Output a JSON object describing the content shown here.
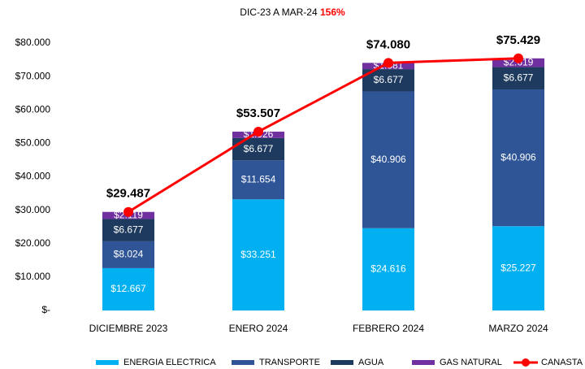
{
  "chart_data": {
    "type": "bar",
    "stacked": true,
    "title": "DIC-23 A MAR-24",
    "title_highlight": "156%",
    "title_highlight_color": "#ff0000",
    "categories": [
      "DICIEMBRE 2023",
      "ENERO 2024",
      "FEBRERO 2024",
      "MARZO 2024"
    ],
    "series": [
      {
        "name": "ENERGIA ELECTRICA",
        "color": "#00b0f0",
        "values": [
          12667,
          33251,
          24616,
          25227
        ],
        "value_labels": [
          "$12.667",
          "$33.251",
          "$24.616",
          "$25.227"
        ]
      },
      {
        "name": "TRANSPORTE",
        "color": "#2f5597",
        "values": [
          8024,
          11654,
          40906,
          40906
        ],
        "value_labels": [
          "$8.024",
          "$11.654",
          "$40.906",
          "$40.906"
        ]
      },
      {
        "name": "AGUA",
        "color": "#1f3a5f",
        "values": [
          6677,
          6677,
          6677,
          6677
        ],
        "value_labels": [
          "$6.677",
          "$6.677",
          "$6.677",
          "$6.677"
        ]
      },
      {
        "name": "GAS NATURAL",
        "color": "#7030a0",
        "values": [
          2119,
          1926,
          1881,
          2619
        ],
        "value_labels": [
          "$2.119",
          "$1.926",
          "$1.881",
          "$2.619"
        ]
      },
      {
        "name": "CANASTA",
        "type": "line",
        "color": "#ff0000",
        "values": [
          29487,
          53507,
          74080,
          75429
        ],
        "value_labels": [
          "$29.487",
          "$53.507",
          "$74.080",
          "$75.429"
        ]
      }
    ],
    "ylim": [
      0,
      80000
    ],
    "yticks": [
      {
        "value": 0,
        "label": "$-"
      },
      {
        "value": 10000,
        "label": "$10.000"
      },
      {
        "value": 20000,
        "label": "$20.000"
      },
      {
        "value": 30000,
        "label": "$30.000"
      },
      {
        "value": 40000,
        "label": "$40.000"
      },
      {
        "value": 50000,
        "label": "$50.000"
      },
      {
        "value": 60000,
        "label": "$60.000"
      },
      {
        "value": 70000,
        "label": "$70.000"
      },
      {
        "value": 80000,
        "label": "$80.000"
      }
    ],
    "grid": false,
    "legend": "bottom"
  }
}
